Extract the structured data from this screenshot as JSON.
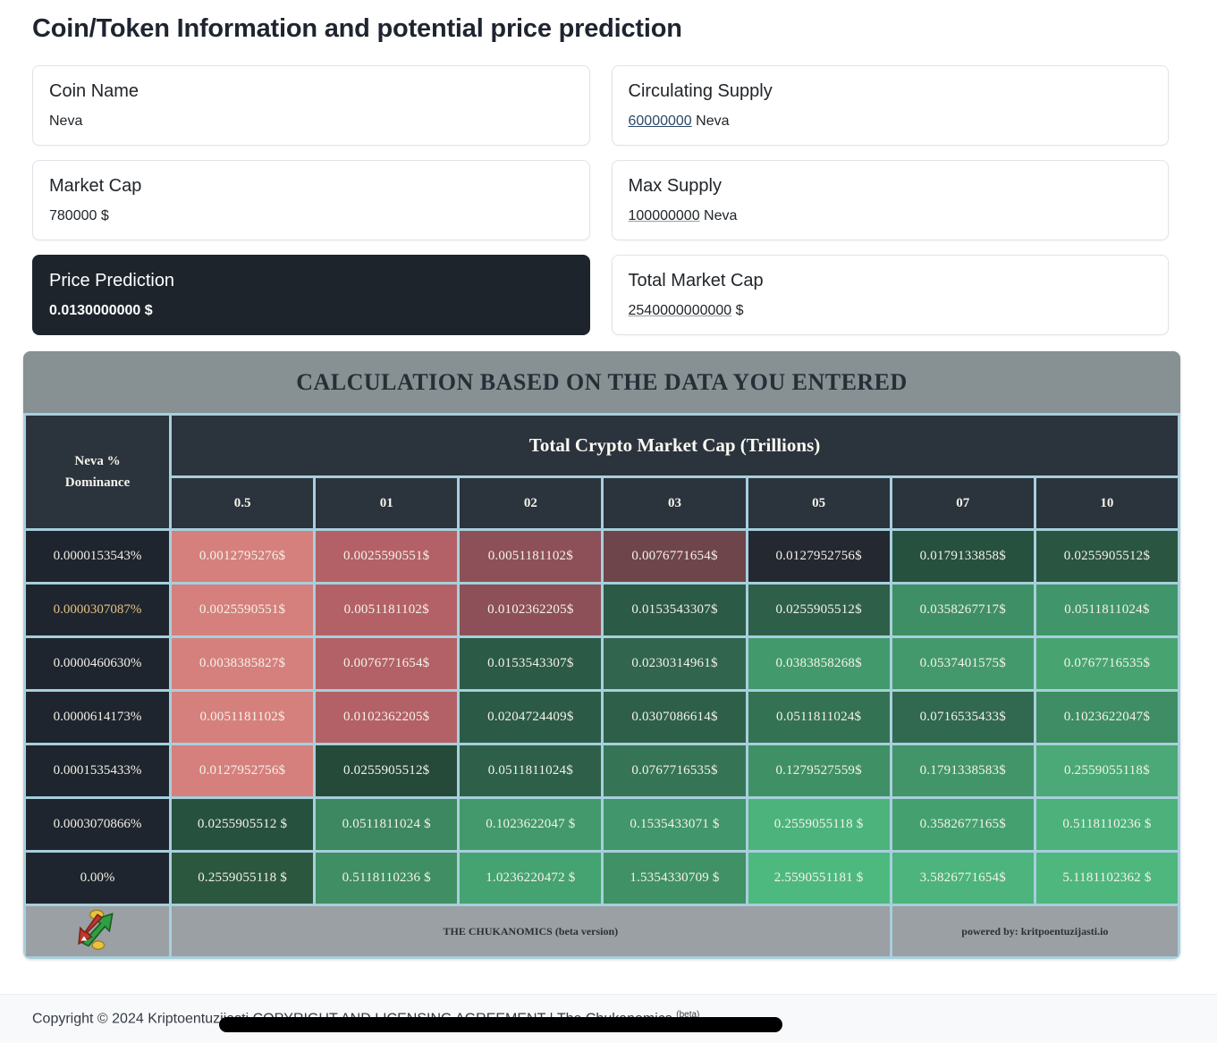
{
  "page": {
    "title": "Coin/Token Information and potential price prediction"
  },
  "cards": [
    {
      "label": "Coin Name",
      "value": "Neva"
    },
    {
      "label": "Circulating Supply",
      "value_num": "60000000",
      "value_suffix": " Neva"
    },
    {
      "label": "Market Cap",
      "value": "780000 $"
    },
    {
      "label": "Max Supply",
      "value_num": "100000000",
      "value_suffix": " Neva"
    },
    {
      "label": "Price Prediction",
      "value": "0.0130000000 $"
    },
    {
      "label": "Total Market Cap",
      "value_num": "2540000000000",
      "value_suffix": " $"
    }
  ],
  "table": {
    "caption": "CALCULATION BASED ON THE DATA YOU ENTERED",
    "corner_line1": "Neva %",
    "corner_line2": "Dominance",
    "group_header": "Total Crypto Market Cap (Trillions)",
    "columns": [
      "0.5",
      "01",
      "02",
      "03",
      "05",
      "07",
      "10"
    ],
    "palette": {
      "border": "#a7cfdc",
      "header_bg": "#2b333d",
      "label_bg": "#1e252e",
      "caption_bg": "#879093",
      "footer_bg": "#9aa0a3",
      "highlight_label": "#e5c186"
    },
    "rows": [
      {
        "label": "0.0000153543%",
        "cells": [
          {
            "text": "0.0012795276$",
            "bg": "#d5807d"
          },
          {
            "text": "0.0025590551$",
            "bg": "#b36166"
          },
          {
            "text": "0.0051181102$",
            "bg": "#8d5058"
          },
          {
            "text": "0.0076771654$",
            "bg": "#6f454c"
          },
          {
            "text": "0.0127952756$",
            "bg": "#232831"
          },
          {
            "text": "0.0179133858$",
            "bg": "#26513f"
          },
          {
            "text": "0.0255905512$",
            "bg": "#295541"
          }
        ]
      },
      {
        "label": "0.0000307087%",
        "label_color": "#e5c186",
        "cells": [
          {
            "text": "0.0025590551$",
            "bg": "#d5807d"
          },
          {
            "text": "0.0051181102$",
            "bg": "#b36166"
          },
          {
            "text": "0.0102362205$",
            "bg": "#8d5058"
          },
          {
            "text": "0.0153543307$",
            "bg": "#2b5a46"
          },
          {
            "text": "0.0255905512$",
            "bg": "#2e6049"
          },
          {
            "text": "0.0358267717$",
            "bg": "#3e8f65"
          },
          {
            "text": "0.0511811024$",
            "bg": "#41956a"
          }
        ]
      },
      {
        "label": "0.0000460630%",
        "cells": [
          {
            "text": "0.0038385827$",
            "bg": "#d5807d"
          },
          {
            "text": "0.0076771654$",
            "bg": "#b36166"
          },
          {
            "text": "0.0153543307$",
            "bg": "#2b5a46"
          },
          {
            "text": "0.0230314961$",
            "bg": "#31654e"
          },
          {
            "text": "0.0383858268$",
            "bg": "#429a6c"
          },
          {
            "text": "0.0537401575$",
            "bg": "#44996c"
          },
          {
            "text": "0.0767716535$",
            "bg": "#47a471"
          }
        ]
      },
      {
        "label": "0.0000614173%",
        "cells": [
          {
            "text": "0.0051181102$",
            "bg": "#d5807d"
          },
          {
            "text": "0.0102362205$",
            "bg": "#b36166"
          },
          {
            "text": "0.0204724409$",
            "bg": "#2b5a46"
          },
          {
            "text": "0.0307086614$",
            "bg": "#2e6049"
          },
          {
            "text": "0.0511811024$",
            "bg": "#347254"
          },
          {
            "text": "0.0716535433$",
            "bg": "#316850"
          },
          {
            "text": "0.1023622047$",
            "bg": "#3e8d64"
          }
        ]
      },
      {
        "label": "0.0001535433%",
        "cells": [
          {
            "text": "0.0127952756$",
            "bg": "#d5807d"
          },
          {
            "text": "0.0255905512$",
            "bg": "#254a3a"
          },
          {
            "text": "0.0511811024$",
            "bg": "#2e6049"
          },
          {
            "text": "0.0767716535$",
            "bg": "#357556"
          },
          {
            "text": "0.1279527559$",
            "bg": "#409066"
          },
          {
            "text": "0.1791338583$",
            "bg": "#429469"
          },
          {
            "text": "0.2559055118$",
            "bg": "#4aa976"
          }
        ]
      },
      {
        "label": "0.0003070866%",
        "cells": [
          {
            "text": "0.0255905512 $",
            "bg": "#27513f"
          },
          {
            "text": "0.0511811024 $",
            "bg": "#3d8761"
          },
          {
            "text": "0.1023622047 $",
            "bg": "#43996b"
          },
          {
            "text": "0.1535433071 $",
            "bg": "#41966c"
          },
          {
            "text": "0.2559055118 $",
            "bg": "#4db37d"
          },
          {
            "text": "0.3582677165$",
            "bg": "#44a06f"
          },
          {
            "text": "0.5118110236 $",
            "bg": "#4cb17b"
          }
        ]
      },
      {
        "label": "0.00%",
        "cells": [
          {
            "text": "0.2559055118 $",
            "bg": "#2b573f"
          },
          {
            "text": "0.5118110236 $",
            "bg": "#3f8e64"
          },
          {
            "text": "1.0236220472 $",
            "bg": "#45a271"
          },
          {
            "text": "1.5354330709 $",
            "bg": "#409166"
          },
          {
            "text": "2.5590551181 $",
            "bg": "#4eb97f"
          },
          {
            "text": "3.5826771654$",
            "bg": "#4cb47c"
          },
          {
            "text": "5.1181102362 $",
            "bg": "#4eb77e"
          }
        ]
      }
    ],
    "footer": {
      "brand": "THE CHUKANOMICS (beta version)",
      "powered": "powered by: kritpoentuzijasti.io"
    }
  },
  "footer": {
    "copyright": "Copyright © 2024 Kriptoentuzijasti ",
    "license_link": "COPYRIGHT AND LICENSING AGREEMENT",
    "separator": " | ",
    "brand": "The Chukanomics ",
    "beta": "(beta)"
  }
}
